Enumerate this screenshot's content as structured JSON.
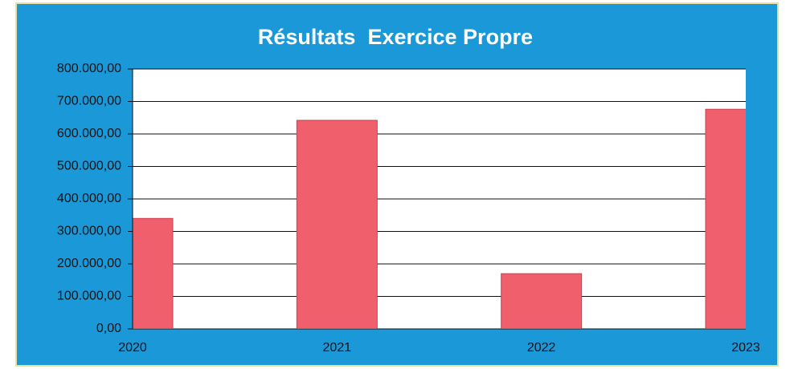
{
  "chart_data": {
    "type": "bar",
    "title": "Résultats  Exercice Propre",
    "categories": [
      "2020",
      "2021",
      "2022",
      "2023"
    ],
    "values": [
      340000,
      642000,
      170000,
      676000
    ],
    "color": "#f0606c",
    "ylim": [
      0,
      800000
    ],
    "yticks": [
      {
        "value": 0,
        "label": "0,00"
      },
      {
        "value": 100000,
        "label": "100.000,00"
      },
      {
        "value": 200000,
        "label": "200.000,00"
      },
      {
        "value": 300000,
        "label": "300.000,00"
      },
      {
        "value": 400000,
        "label": "400.000,00"
      },
      {
        "value": 500000,
        "label": "500.000,00"
      },
      {
        "value": 600000,
        "label": "600.000,00"
      },
      {
        "value": 700000,
        "label": "700.000,00"
      },
      {
        "value": 800000,
        "label": "800.000,00"
      }
    ],
    "grid": true
  }
}
